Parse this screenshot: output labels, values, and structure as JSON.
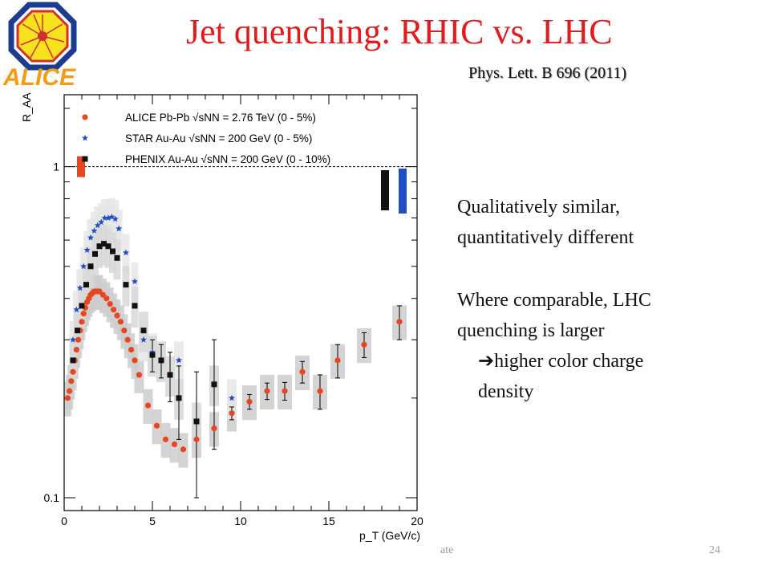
{
  "slide": {
    "title": "Jet quenching: RHIC vs. LHC",
    "reference": "Phys. Lett. B 696 (2011)",
    "logo_text": "ALICE",
    "notes": [
      "Qualitatively similar,",
      "quantitatively different",
      "Where comparable, LHC",
      "quenching is larger",
      "higher color charge",
      "density"
    ],
    "arrow_glyph": "➔",
    "footer_text": "ate",
    "page_number": "24"
  },
  "chart_data": {
    "type": "scatter",
    "title": "",
    "ylabel": "R_AA",
    "xlabel": "p_T (GeV/c)",
    "xlim": [
      0,
      20
    ],
    "ylim": [
      0.1,
      1.5
    ],
    "yscale": "log",
    "x_ticks": [
      "0",
      "5",
      "10",
      "15",
      "20"
    ],
    "y_ticks": [
      "0.1",
      "1"
    ],
    "reference_line_y": 1,
    "legend_position": "top-left",
    "series": [
      {
        "name": "ALICE Pb-Pb √sNN = 2.76 TeV (0 - 5%)",
        "marker": "circle",
        "color": "#e8461e",
        "x": [
          0.2,
          0.3,
          0.4,
          0.5,
          0.6,
          0.7,
          0.8,
          0.9,
          1.0,
          1.1,
          1.2,
          1.3,
          1.4,
          1.5,
          1.6,
          1.7,
          1.8,
          1.9,
          2.0,
          2.2,
          2.4,
          2.6,
          2.8,
          3.0,
          3.2,
          3.4,
          3.6,
          3.8,
          4.0,
          4.25,
          4.75,
          5.25,
          5.75,
          6.25,
          6.75,
          7.5,
          8.5,
          9.5,
          10.5,
          11.5,
          12.5,
          13.5,
          14.5,
          15.5,
          17.0,
          19.0
        ],
        "y": [
          0.2,
          0.21,
          0.225,
          0.24,
          0.26,
          0.28,
          0.3,
          0.32,
          0.34,
          0.36,
          0.375,
          0.39,
          0.4,
          0.41,
          0.415,
          0.42,
          0.42,
          0.42,
          0.42,
          0.41,
          0.4,
          0.385,
          0.37,
          0.355,
          0.34,
          0.32,
          0.3,
          0.28,
          0.26,
          0.235,
          0.19,
          0.165,
          0.15,
          0.145,
          0.14,
          0.15,
          0.162,
          0.18,
          0.195,
          0.21,
          0.21,
          0.24,
          0.21,
          0.26,
          0.29,
          0.34
        ],
        "y_err": [
          0,
          0,
          0,
          0,
          0,
          0,
          0,
          0,
          0,
          0,
          0,
          0,
          0,
          0,
          0,
          0,
          0,
          0,
          0,
          0,
          0,
          0,
          0,
          0,
          0,
          0,
          0,
          0,
          0,
          0,
          0,
          0,
          0,
          0,
          0,
          0,
          0,
          0.008,
          0.01,
          0.012,
          0.013,
          0.018,
          0.025,
          0.03,
          0.025,
          0.04
        ]
      },
      {
        "name": "STAR Au-Au √sNN = 200 GeV (0 - 5%)",
        "marker": "star",
        "color": "#1f4ec9",
        "x": [
          0.5,
          0.7,
          0.9,
          1.1,
          1.3,
          1.5,
          1.7,
          1.9,
          2.1,
          2.3,
          2.5,
          2.7,
          2.9,
          3.1,
          3.5,
          4.0,
          4.5,
          5.0,
          5.5,
          6.5,
          8.5,
          9.5
        ],
        "y": [
          0.3,
          0.37,
          0.43,
          0.5,
          0.56,
          0.61,
          0.64,
          0.665,
          0.68,
          0.7,
          0.7,
          0.705,
          0.695,
          0.65,
          0.55,
          0.45,
          0.3,
          0.275,
          0.26,
          0.26,
          0.22,
          0.2
        ],
        "y_err": [
          0,
          0,
          0,
          0,
          0,
          0,
          0,
          0,
          0,
          0,
          0,
          0,
          0,
          0,
          0,
          0,
          0,
          0,
          0,
          0,
          0,
          0
        ]
      },
      {
        "name": "PHENIX Au-Au √sNN = 200 GeV (0 - 10%)",
        "marker": "square",
        "color": "#111111",
        "x": [
          0.5,
          0.75,
          1.0,
          1.25,
          1.5,
          1.75,
          2.0,
          2.25,
          2.5,
          2.75,
          3.0,
          3.5,
          4.0,
          4.5,
          5.0,
          5.5,
          6.0,
          6.5,
          7.5,
          8.5
        ],
        "y": [
          0.26,
          0.32,
          0.38,
          0.44,
          0.5,
          0.545,
          0.575,
          0.585,
          0.575,
          0.555,
          0.53,
          0.44,
          0.38,
          0.32,
          0.27,
          0.26,
          0.235,
          0.2,
          0.17,
          0.22
        ],
        "y_err": [
          0,
          0,
          0,
          0,
          0,
          0,
          0,
          0,
          0,
          0,
          0,
          0,
          0,
          0,
          0.03,
          0.03,
          0.04,
          0.05,
          0.07,
          0.08
        ]
      }
    ],
    "normalization_boxes": [
      {
        "series": "ALICE",
        "color": "#e8461e"
      },
      {
        "series": "PHENIX",
        "color": "#111111"
      },
      {
        "series": "STAR",
        "color": "#1f4ec9"
      }
    ]
  }
}
